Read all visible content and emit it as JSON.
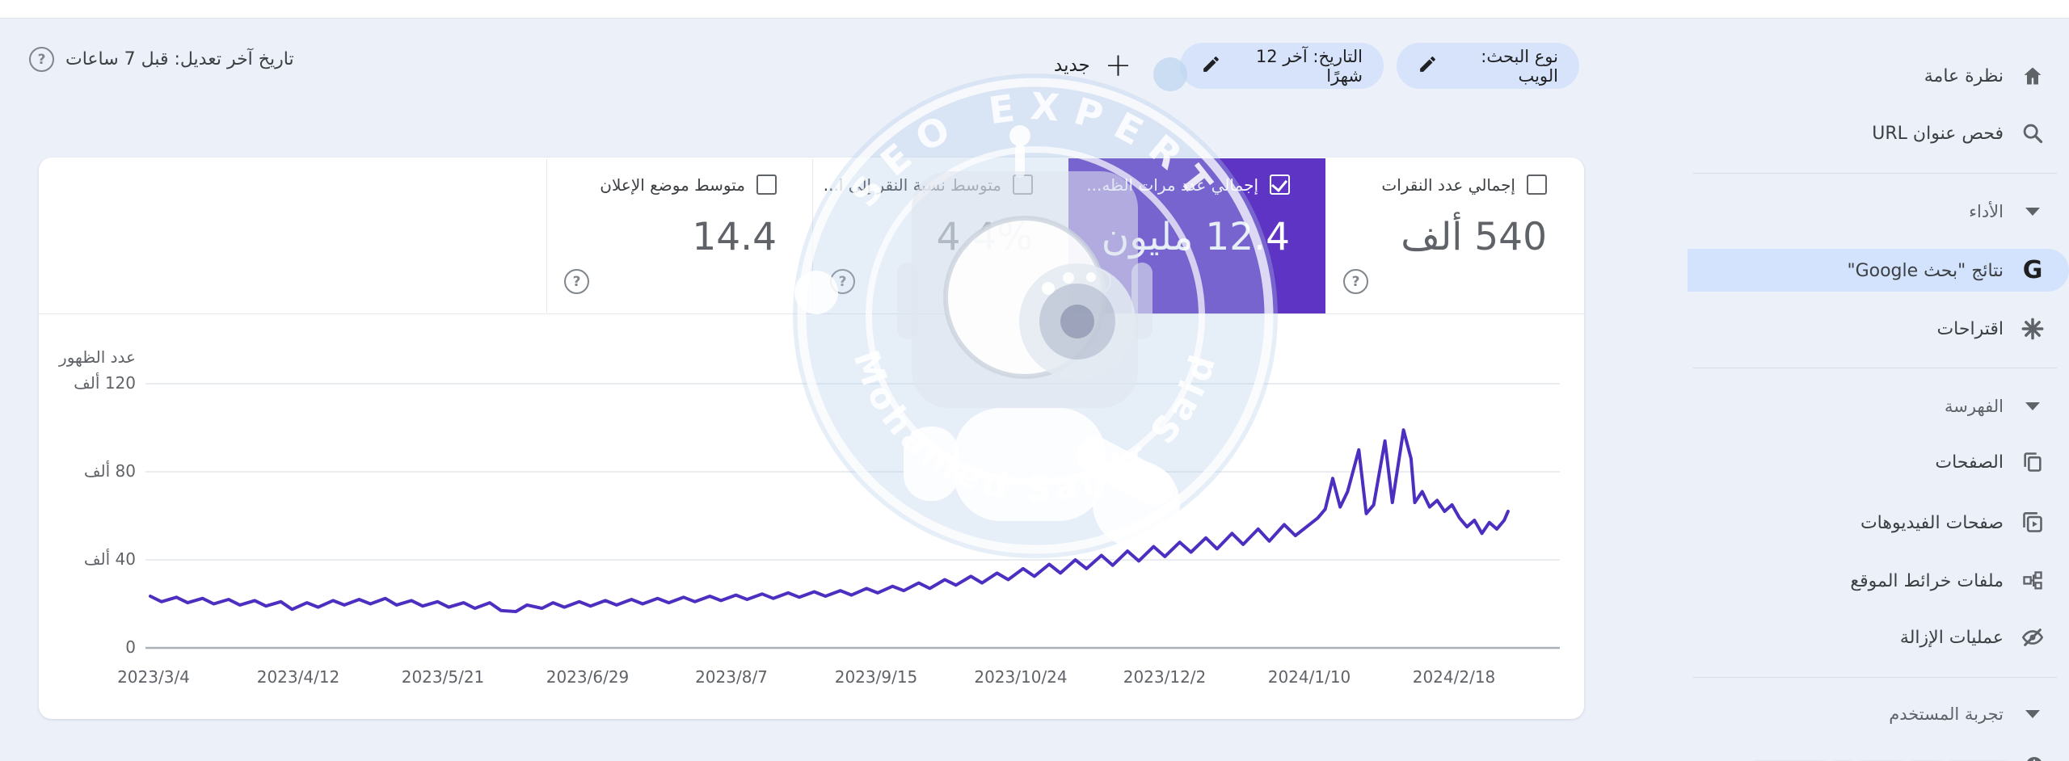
{
  "app": {
    "background": "#ecf1f9",
    "panel_bg": "#ffffff",
    "accent_purple": "#5d34c3",
    "line_color": "#4c2ec0",
    "chip_bg": "#d7e3fa",
    "selected_item_bg": "#d3e3fd"
  },
  "topbar": {
    "last_update": "تاريخ آخر تعديل: قبل 7 ساعات",
    "new_button": "جديد",
    "date_chip": "التاريخ: آخر 12 شهرًا",
    "search_type_chip": "نوع البحث: الويب"
  },
  "sidebar": {
    "overview": "نظرة عامة",
    "url_inspection": "فحص عنوان URL",
    "performance_section": "الأداء",
    "search_results": "نتائج \"بحث Google\"",
    "discover": "اقتراحات",
    "indexing_section": "الفهرسة",
    "pages": "الصفحات",
    "video_pages": "صفحات الفيديوهات",
    "sitemaps": "ملفات خرائط الموقع",
    "removals": "عمليات الإزالة",
    "experience_section": "تجربة المستخدم"
  },
  "cards": [
    {
      "label": "إجمالي عدد النقرات",
      "value": "540 ألف",
      "checked": false
    },
    {
      "label": "إجمالي عدد مرات الظه...",
      "value": "12.4 مليون",
      "checked": true,
      "selected": true
    },
    {
      "label": "متوسط نسبة النقر إلى ا...",
      "value": "4.4%",
      "checked": false
    },
    {
      "label": "متوسط موضع الإعلان",
      "value": "14.4",
      "checked": false
    }
  ],
  "watermark": {
    "top_text": "SEO EXPERT",
    "bottom_text": "Mohamed Samir Said"
  },
  "chart_data": {
    "type": "line",
    "ylabel": "عدد الظهور",
    "unit": "thousands of impressions",
    "x_start_date": "2023/3/4",
    "ylim_thousands": [
      0,
      120
    ],
    "grid": true,
    "yticks": [
      "120 ألف",
      "80 ألف",
      "40 ألف",
      "0"
    ],
    "xticks": [
      "2023/3/4",
      "2023/4/12",
      "2023/5/21",
      "2023/6/29",
      "2023/8/7",
      "2023/9/15",
      "2023/10/24",
      "2023/12/2",
      "2024/1/10",
      "2024/2/18"
    ],
    "series": [
      {
        "name": "إجمالي عدد مرات الظهور",
        "color": "#4c2ec0",
        "points_day_value_thousands": [
          [
            0,
            23.5
          ],
          [
            3,
            21
          ],
          [
            7,
            23
          ],
          [
            10,
            20.5
          ],
          [
            14,
            22.5
          ],
          [
            17,
            20
          ],
          [
            21,
            22
          ],
          [
            24,
            19.5
          ],
          [
            28,
            21.5
          ],
          [
            31,
            19
          ],
          [
            35,
            21
          ],
          [
            38,
            17.5
          ],
          [
            42,
            20.5
          ],
          [
            45,
            18.5
          ],
          [
            49,
            21.5
          ],
          [
            52,
            19.5
          ],
          [
            56,
            22
          ],
          [
            59,
            20
          ],
          [
            63,
            22.5
          ],
          [
            66,
            19.5
          ],
          [
            70,
            21.5
          ],
          [
            73,
            19
          ],
          [
            77,
            21
          ],
          [
            80,
            18.5
          ],
          [
            84,
            20.5
          ],
          [
            87,
            18
          ],
          [
            91,
            20.5
          ],
          [
            94,
            17
          ],
          [
            98,
            16.5
          ],
          [
            101,
            19.5
          ],
          [
            105,
            18
          ],
          [
            108,
            20.5
          ],
          [
            111,
            18.5
          ],
          [
            115,
            21
          ],
          [
            118,
            19
          ],
          [
            122,
            21.5
          ],
          [
            125,
            19.5
          ],
          [
            129,
            22
          ],
          [
            132,
            20
          ],
          [
            136,
            22.5
          ],
          [
            139,
            20.5
          ],
          [
            143,
            23
          ],
          [
            146,
            21
          ],
          [
            150,
            23.5
          ],
          [
            153,
            21.5
          ],
          [
            157,
            24
          ],
          [
            160,
            22
          ],
          [
            164,
            24.5
          ],
          [
            167,
            22.5
          ],
          [
            171,
            25
          ],
          [
            174,
            23
          ],
          [
            178,
            25.5
          ],
          [
            181,
            23.5
          ],
          [
            185,
            26
          ],
          [
            188,
            24
          ],
          [
            192,
            27
          ],
          [
            195,
            25
          ],
          [
            199,
            28
          ],
          [
            202,
            26
          ],
          [
            206,
            29.5
          ],
          [
            209,
            27
          ],
          [
            213,
            31
          ],
          [
            216,
            28.5
          ],
          [
            220,
            32.5
          ],
          [
            223,
            29.5
          ],
          [
            227,
            34
          ],
          [
            230,
            31
          ],
          [
            234,
            36
          ],
          [
            237,
            32.5
          ],
          [
            241,
            38
          ],
          [
            244,
            34
          ],
          [
            248,
            40
          ],
          [
            251,
            36
          ],
          [
            255,
            42
          ],
          [
            258,
            37.5
          ],
          [
            262,
            44
          ],
          [
            265,
            39.5
          ],
          [
            269,
            46
          ],
          [
            272,
            41.5
          ],
          [
            276,
            48
          ],
          [
            279,
            43.5
          ],
          [
            283,
            50
          ],
          [
            286,
            45
          ],
          [
            290,
            52
          ],
          [
            293,
            47
          ],
          [
            297,
            54
          ],
          [
            300,
            48.5
          ],
          [
            304,
            56
          ],
          [
            307,
            51
          ],
          [
            310,
            55
          ],
          [
            313,
            59
          ],
          [
            315,
            63
          ],
          [
            317,
            77
          ],
          [
            319,
            64
          ],
          [
            321,
            71
          ],
          [
            324,
            90
          ],
          [
            326,
            61
          ],
          [
            328,
            65
          ],
          [
            331,
            94
          ],
          [
            333,
            66
          ],
          [
            336,
            99
          ],
          [
            338,
            86
          ],
          [
            339,
            66
          ],
          [
            341,
            71
          ],
          [
            343,
            64
          ],
          [
            345,
            67
          ],
          [
            347,
            62
          ],
          [
            349,
            65
          ],
          [
            351,
            59
          ],
          [
            353,
            55
          ],
          [
            355,
            58
          ],
          [
            357,
            52
          ],
          [
            359,
            57
          ],
          [
            361,
            54
          ],
          [
            363,
            58
          ],
          [
            364,
            62
          ]
        ]
      }
    ]
  }
}
